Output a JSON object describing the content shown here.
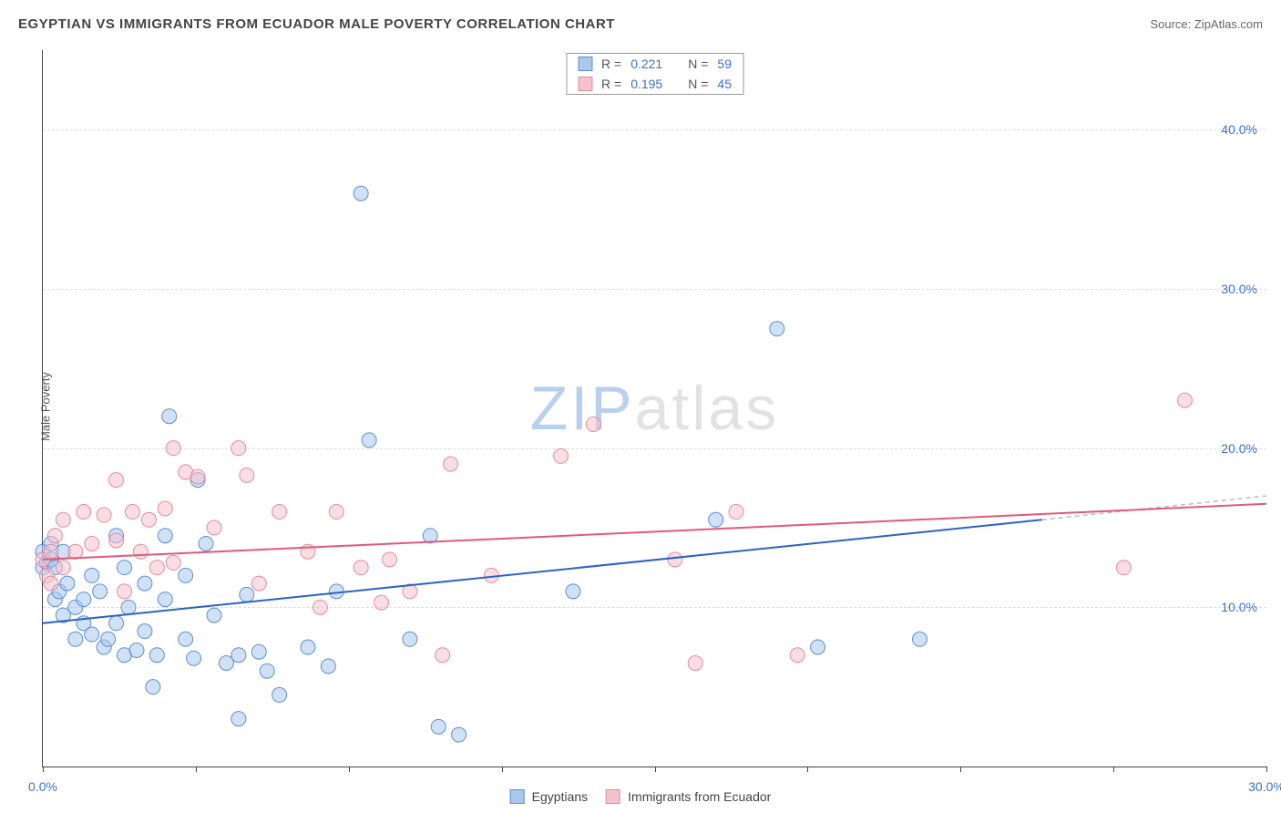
{
  "header": {
    "title": "EGYPTIAN VS IMMIGRANTS FROM ECUADOR MALE POVERTY CORRELATION CHART",
    "source_prefix": "Source: ",
    "source": "ZipAtlas.com"
  },
  "y_axis_label": "Male Poverty",
  "watermark": {
    "part1": "ZIP",
    "part2": "atlas"
  },
  "chart": {
    "type": "scatter",
    "xlim": [
      0,
      30
    ],
    "ylim": [
      0,
      45
    ],
    "x_ticks": [
      0,
      3.75,
      7.5,
      11.25,
      15,
      18.75,
      22.5,
      26.25,
      30
    ],
    "x_tick_labels": {
      "0": "0.0%",
      "30": "30.0%"
    },
    "y_gridlines": [
      10,
      20,
      30,
      40
    ],
    "y_tick_labels": {
      "10": "10.0%",
      "20": "20.0%",
      "30": "30.0%",
      "40": "40.0%"
    },
    "background_color": "#ffffff",
    "grid_color": "#dddddd",
    "axis_color": "#444444",
    "marker_radius": 8,
    "marker_opacity": 0.55,
    "series": [
      {
        "key": "egyptians",
        "label": "Egyptians",
        "fill": "#a9c8ec",
        "stroke": "#5a8fd6",
        "line_color": "#2a62c9",
        "R": "0.221",
        "N": "59",
        "regression": {
          "x1": 0,
          "y1": 9.0,
          "x2": 24.5,
          "y2": 15.5
        },
        "extension": {
          "x1": 24.5,
          "y1": 15.5,
          "x2": 30,
          "y2": 17.0
        },
        "points": [
          [
            0.0,
            12.5
          ],
          [
            0.0,
            13.5
          ],
          [
            0.1,
            12.8
          ],
          [
            0.2,
            14.0
          ],
          [
            0.2,
            13.0
          ],
          [
            0.3,
            12.5
          ],
          [
            0.3,
            10.5
          ],
          [
            0.4,
            11.0
          ],
          [
            0.5,
            9.5
          ],
          [
            0.5,
            13.5
          ],
          [
            0.6,
            11.5
          ],
          [
            0.8,
            10.0
          ],
          [
            0.8,
            8.0
          ],
          [
            1.0,
            10.5
          ],
          [
            1.0,
            9.0
          ],
          [
            1.2,
            12.0
          ],
          [
            1.2,
            8.3
          ],
          [
            1.4,
            11.0
          ],
          [
            1.5,
            7.5
          ],
          [
            1.6,
            8.0
          ],
          [
            1.8,
            9.0
          ],
          [
            1.8,
            14.5
          ],
          [
            2.0,
            12.5
          ],
          [
            2.0,
            7.0
          ],
          [
            2.1,
            10.0
          ],
          [
            2.3,
            7.3
          ],
          [
            2.5,
            8.5
          ],
          [
            2.5,
            11.5
          ],
          [
            2.7,
            5.0
          ],
          [
            2.8,
            7.0
          ],
          [
            3.0,
            14.5
          ],
          [
            3.0,
            10.5
          ],
          [
            3.1,
            22.0
          ],
          [
            3.5,
            12.0
          ],
          [
            3.5,
            8.0
          ],
          [
            3.7,
            6.8
          ],
          [
            3.8,
            18.0
          ],
          [
            4.0,
            14.0
          ],
          [
            4.2,
            9.5
          ],
          [
            4.5,
            6.5
          ],
          [
            4.8,
            7.0
          ],
          [
            4.8,
            3.0
          ],
          [
            5.0,
            10.8
          ],
          [
            5.3,
            7.2
          ],
          [
            5.5,
            6.0
          ],
          [
            5.8,
            4.5
          ],
          [
            6.5,
            7.5
          ],
          [
            7.0,
            6.3
          ],
          [
            7.2,
            11.0
          ],
          [
            7.8,
            36.0
          ],
          [
            8.0,
            20.5
          ],
          [
            9.0,
            8.0
          ],
          [
            9.5,
            14.5
          ],
          [
            9.7,
            2.5
          ],
          [
            10.2,
            2.0
          ],
          [
            13.0,
            11.0
          ],
          [
            16.5,
            15.5
          ],
          [
            18.0,
            27.5
          ],
          [
            19.0,
            7.5
          ],
          [
            21.5,
            8.0
          ]
        ]
      },
      {
        "key": "ecuador",
        "label": "Immigrants from Ecuador",
        "fill": "#f4c2cd",
        "stroke": "#e48a9e",
        "line_color": "#e05a7a",
        "R": "0.195",
        "N": "45",
        "regression": {
          "x1": 0,
          "y1": 13.0,
          "x2": 30,
          "y2": 16.5
        },
        "points": [
          [
            0.0,
            13.0
          ],
          [
            0.1,
            12.0
          ],
          [
            0.2,
            13.5
          ],
          [
            0.2,
            11.5
          ],
          [
            0.3,
            14.5
          ],
          [
            0.5,
            15.5
          ],
          [
            0.5,
            12.5
          ],
          [
            0.8,
            13.5
          ],
          [
            1.0,
            16.0
          ],
          [
            1.2,
            14.0
          ],
          [
            1.5,
            15.8
          ],
          [
            1.8,
            14.2
          ],
          [
            1.8,
            18.0
          ],
          [
            2.0,
            11.0
          ],
          [
            2.2,
            16.0
          ],
          [
            2.4,
            13.5
          ],
          [
            2.6,
            15.5
          ],
          [
            2.8,
            12.5
          ],
          [
            3.0,
            16.2
          ],
          [
            3.2,
            12.8
          ],
          [
            3.2,
            20.0
          ],
          [
            3.5,
            18.5
          ],
          [
            3.8,
            18.2
          ],
          [
            4.2,
            15.0
          ],
          [
            4.8,
            20.0
          ],
          [
            5.0,
            18.3
          ],
          [
            5.3,
            11.5
          ],
          [
            5.8,
            16.0
          ],
          [
            6.5,
            13.5
          ],
          [
            6.8,
            10.0
          ],
          [
            7.2,
            16.0
          ],
          [
            7.8,
            12.5
          ],
          [
            8.3,
            10.3
          ],
          [
            8.5,
            13.0
          ],
          [
            9.0,
            11.0
          ],
          [
            9.8,
            7.0
          ],
          [
            10.0,
            19.0
          ],
          [
            11.0,
            12.0
          ],
          [
            12.7,
            19.5
          ],
          [
            13.5,
            21.5
          ],
          [
            15.5,
            13.0
          ],
          [
            16.0,
            6.5
          ],
          [
            17.0,
            16.0
          ],
          [
            18.5,
            7.0
          ],
          [
            26.5,
            12.5
          ],
          [
            28.0,
            23.0
          ]
        ]
      }
    ]
  },
  "stats_legend": {
    "r_label": "R =",
    "n_label": "N ="
  }
}
